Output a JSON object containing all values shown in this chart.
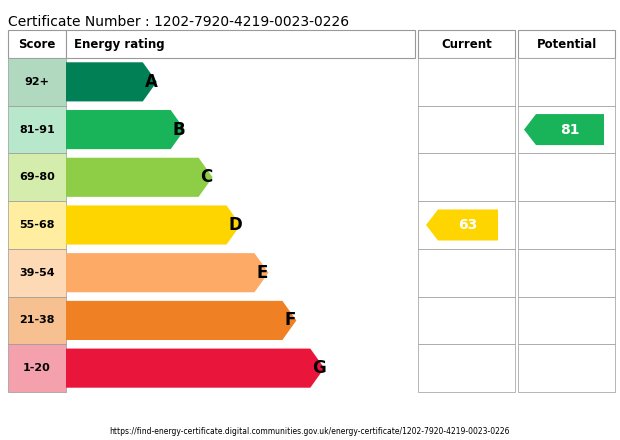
{
  "cert_number": "Certificate Number : 1202-7920-4219-0023-0226",
  "url": "https://find-energy-certificate.digital.communities.gov.uk/energy-certificate/1202-7920-4219-0023-0226",
  "header_score": "Score",
  "header_rating": "Energy rating",
  "header_current": "Current",
  "header_potential": "Potential",
  "bands": [
    {
      "label": "A",
      "score": "92+",
      "color": "#008054",
      "score_bg": "#b0d9c0",
      "bar_width": 0.22
    },
    {
      "label": "B",
      "score": "81-91",
      "color": "#19b459",
      "score_bg": "#b8e8cc",
      "bar_width": 0.3
    },
    {
      "label": "C",
      "score": "69-80",
      "color": "#8dce46",
      "score_bg": "#d4edac",
      "bar_width": 0.38
    },
    {
      "label": "D",
      "score": "55-68",
      "color": "#ffd500",
      "score_bg": "#ffeea0",
      "bar_width": 0.46
    },
    {
      "label": "E",
      "score": "39-54",
      "color": "#fcaa65",
      "score_bg": "#fdd9b5",
      "bar_width": 0.54
    },
    {
      "label": "F",
      "score": "21-38",
      "color": "#ef8023",
      "score_bg": "#f7c090",
      "bar_width": 0.62
    },
    {
      "label": "G",
      "score": "1-20",
      "color": "#e9153b",
      "score_bg": "#f5a0ad",
      "bar_width": 0.7
    }
  ],
  "current_value": "63",
  "current_band_index": 3,
  "current_color": "#ffd500",
  "potential_value": "81",
  "potential_band_index": 1,
  "potential_color": "#19b459",
  "bg_color": "#ffffff"
}
